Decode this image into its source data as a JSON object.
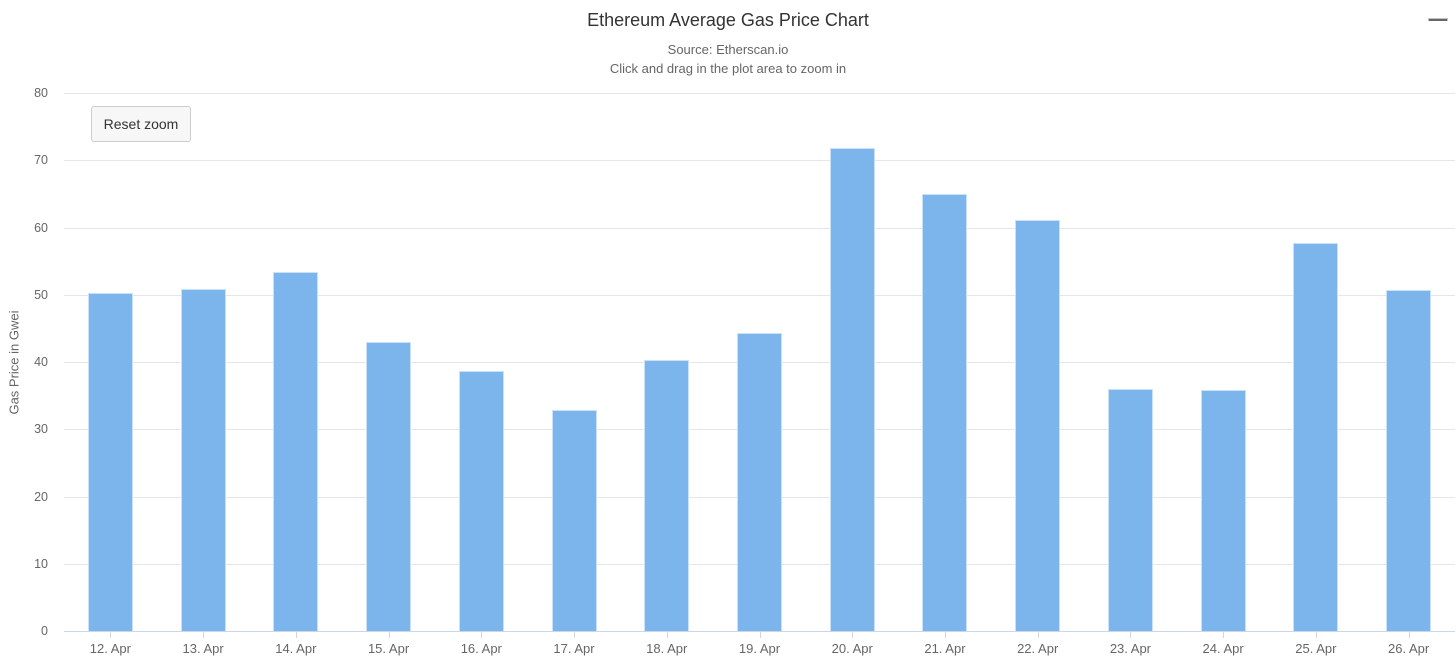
{
  "chart": {
    "title": "Ethereum Average Gas Price Chart",
    "subtitle_source": "Source: Etherscan.io",
    "subtitle_hint": "Click and drag in the plot area to zoom in"
  },
  "toolbar": {
    "reset_zoom_label": "Reset zoom"
  },
  "menu": {
    "icon": "hamburger-menu-icon",
    "color": "#666666"
  },
  "colors": {
    "bar_fill": "#7cb5ec",
    "bar_border": "#ffffff",
    "gridline": "#e6e6e6",
    "axis_line": "#ccd6eb",
    "title_text": "#333333",
    "secondary_text": "#666666",
    "background": "#ffffff"
  },
  "chart_data": {
    "type": "bar",
    "title": "Ethereum Average Gas Price Chart",
    "subtitle": [
      "Source: Etherscan.io",
      "Click and drag in the plot area to zoom in"
    ],
    "categories": [
      "12. Apr",
      "13. Apr",
      "14. Apr",
      "15. Apr",
      "16. Apr",
      "17. Apr",
      "18. Apr",
      "19. Apr",
      "20. Apr",
      "21. Apr",
      "22. Apr",
      "23. Apr",
      "24. Apr",
      "25. Apr",
      "26. Apr"
    ],
    "values": [
      50.3,
      50.9,
      53.4,
      43.0,
      38.6,
      32.9,
      40.3,
      44.3,
      71.8,
      65.0,
      61.1,
      36.0,
      35.9,
      57.7,
      50.7
    ],
    "series_name": "Gas Price",
    "xlabel": "",
    "ylabel": "Gas Price in Gwei",
    "ylim": [
      0,
      80
    ],
    "ytick_step": 10,
    "yticks": [
      0,
      10,
      20,
      30,
      40,
      50,
      60,
      70,
      80
    ],
    "grid": true,
    "legend": false,
    "bar_color": "#7cb5ec"
  }
}
